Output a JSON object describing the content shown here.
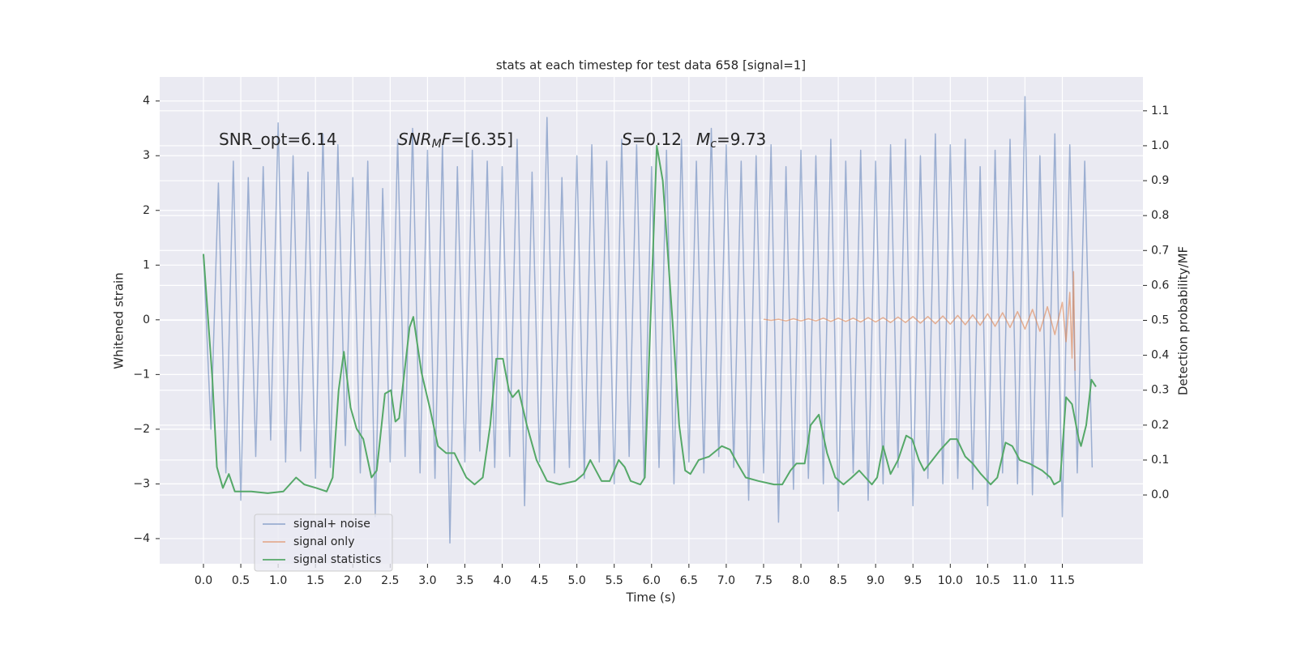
{
  "chart_data": {
    "type": "line",
    "title": "stats at each timestep for test data 658 [signal=1]",
    "xlabel": "Time (s)",
    "ylabel": "Whitened strain",
    "y2label": "Detection probability/MF",
    "xlim": [
      -0.586,
      12.58
    ],
    "ylim": [
      -4.46,
      4.44
    ],
    "y2lim": [
      -0.197,
      1.197
    ],
    "xticks": [
      {
        "value": 0,
        "label": "0.0"
      },
      0.5,
      {
        "value": 1,
        "label": "1.0"
      },
      1.5,
      {
        "value": 2,
        "label": "2.0"
      },
      2.5,
      {
        "value": 3,
        "label": "3.0"
      },
      3.5,
      {
        "value": 4,
        "label": "4.0"
      },
      4.5,
      {
        "value": 5,
        "label": "5.0"
      },
      5.5,
      {
        "value": 6,
        "label": "6.0"
      },
      6.5,
      {
        "value": 7,
        "label": "7.0"
      },
      7.5,
      {
        "value": 8,
        "label": "8.0"
      },
      8.5,
      {
        "value": 9,
        "label": "9.0"
      },
      9.5,
      {
        "value": 10,
        "label": "10.0"
      },
      10.5,
      {
        "value": 11,
        "label": "11.0"
      },
      11.5
    ],
    "yticks": [
      {
        "value": -4,
        "label": "−4"
      },
      {
        "value": -3,
        "label": "−3"
      },
      {
        "value": -2,
        "label": "−2"
      },
      {
        "value": -1,
        "label": "−1"
      },
      0,
      1,
      2,
      3,
      4
    ],
    "y2ticks": [
      {
        "value": 0,
        "label": "0.0"
      },
      0.1,
      0.2,
      0.3,
      0.4,
      0.5,
      0.6,
      0.7,
      0.8,
      0.9,
      {
        "value": 1,
        "label": "1.0"
      },
      1.1
    ],
    "grid": true,
    "legend": "lower left",
    "annotations": [
      [
        {
          "text": "SNR_opt=6.14"
        }
      ],
      [
        {
          "text": "SNR",
          "italic": true
        },
        {
          "text": "M",
          "italic": true,
          "sub": true
        },
        {
          "text": "F",
          "italic": true
        },
        {
          "text": "=[6.35]"
        }
      ],
      [
        {
          "text": "S",
          "italic": true
        },
        {
          "text": "=0.12"
        }
      ],
      [
        {
          "text": "M",
          "italic": true
        },
        {
          "text": "c",
          "italic": true,
          "sub": true
        },
        {
          "text": "=9.73"
        }
      ]
    ],
    "series": [
      {
        "name": "signal+ noise",
        "color": "#4c72b0",
        "opacity": 0.5,
        "x": [
          0,
          0.1,
          0.2,
          0.3,
          0.4,
          0.5,
          0.6,
          0.7,
          0.8,
          0.9,
          1,
          1.1,
          1.2,
          1.3,
          1.4,
          1.5,
          1.6,
          1.7,
          1.8,
          1.9,
          2,
          2.1,
          2.2,
          2.3,
          2.4,
          2.5,
          2.6,
          2.7,
          2.8,
          2.9,
          3,
          3.1,
          3.2,
          3.3,
          3.4,
          3.5,
          3.6,
          3.7,
          3.8,
          3.9,
          4,
          4.1,
          4.2,
          4.3,
          4.4,
          4.5,
          4.6,
          4.7,
          4.8,
          4.9,
          5,
          5.1,
          5.2,
          5.3,
          5.4,
          5.5,
          5.6,
          5.7,
          5.8,
          5.9,
          6,
          6.1,
          6.2,
          6.3,
          6.4,
          6.5,
          6.6,
          6.7,
          6.8,
          6.9,
          7,
          7.1,
          7.2,
          7.3,
          7.4,
          7.5,
          7.6,
          7.7,
          7.8,
          7.9,
          8,
          8.1,
          8.2,
          8.3,
          8.4,
          8.5,
          8.6,
          8.7,
          8.8,
          8.9,
          9,
          9.1,
          9.2,
          9.3,
          9.4,
          9.5,
          9.6,
          9.7,
          9.8,
          9.9,
          10,
          10.1,
          10.2,
          10.3,
          10.4,
          10.5,
          10.6,
          10.7,
          10.8,
          10.9,
          11,
          11.1,
          11.2,
          11.3,
          11.4,
          11.5,
          11.6,
          11.7,
          11.8,
          11.9
        ],
        "values": [
          1.2,
          -2.0,
          2.5,
          -2.8,
          2.9,
          -3.3,
          2.6,
          -2.5,
          2.8,
          -2.2,
          3.6,
          -2.6,
          3.0,
          -2.4,
          2.7,
          -2.9,
          3.4,
          -2.7,
          3.2,
          -2.3,
          2.6,
          -2.8,
          2.9,
          -3.6,
          2.4,
          -2.6,
          3.3,
          -2.5,
          3.5,
          -2.8,
          3.1,
          -2.9,
          3.2,
          -4.08,
          2.8,
          -2.6,
          3.1,
          -2.4,
          2.9,
          -2.7,
          2.8,
          -2.5,
          3.3,
          -3.4,
          2.7,
          -2.6,
          3.7,
          -2.8,
          2.6,
          -2.7,
          3.0,
          -2.9,
          3.2,
          -2.6,
          2.9,
          -3.0,
          3.3,
          -2.5,
          3.2,
          -2.9,
          2.8,
          -2.7,
          3.1,
          -3.0,
          3.3,
          -2.6,
          2.9,
          -2.8,
          3.5,
          -2.5,
          3.2,
          -2.7,
          2.9,
          -3.3,
          3.0,
          -2.8,
          3.2,
          -3.7,
          2.8,
          -3.1,
          3.1,
          -2.9,
          3.0,
          -3.0,
          3.3,
          -3.5,
          2.9,
          -2.8,
          3.1,
          -3.3,
          2.9,
          -3.0,
          3.2,
          -2.7,
          3.3,
          -3.4,
          3.0,
          -2.9,
          3.4,
          -3.0,
          3.2,
          -2.9,
          3.3,
          -3.1,
          2.8,
          -3.4,
          3.1,
          -2.8,
          3.3,
          -3.0,
          4.08,
          -3.2,
          3.0,
          -2.9,
          3.4,
          -3.6,
          3.2,
          -2.8,
          2.9,
          -2.7
        ]
      },
      {
        "name": "signal only",
        "color": "#dd8452",
        "opacity": 0.6,
        "x": [
          7.5,
          7.6,
          7.7,
          7.8,
          7.9,
          8,
          8.1,
          8.2,
          8.3,
          8.4,
          8.5,
          8.6,
          8.7,
          8.8,
          8.9,
          9,
          9.1,
          9.2,
          9.3,
          9.4,
          9.5,
          9.6,
          9.7,
          9.8,
          9.9,
          10,
          10.1,
          10.2,
          10.3,
          10.4,
          10.5,
          10.6,
          10.7,
          10.8,
          10.9,
          11,
          11.1,
          11.2,
          11.3,
          11.4,
          11.5,
          11.55,
          11.6,
          11.63,
          11.65,
          11.67
        ],
        "values": [
          0.01,
          -0.01,
          0.01,
          -0.02,
          0.02,
          -0.02,
          0.02,
          -0.02,
          0.03,
          -0.03,
          0.03,
          -0.03,
          0.03,
          -0.04,
          0.04,
          -0.04,
          0.04,
          -0.05,
          0.05,
          -0.05,
          0.06,
          -0.06,
          0.06,
          -0.07,
          0.07,
          -0.08,
          0.08,
          -0.09,
          0.09,
          -0.1,
          0.11,
          -0.12,
          0.13,
          -0.14,
          0.15,
          -0.17,
          0.19,
          -0.21,
          0.24,
          -0.27,
          0.32,
          -0.4,
          0.5,
          -0.7,
          0.88,
          -0.93
        ]
      },
      {
        "name": "signal statistics",
        "color": "#55a868",
        "axis": "y2",
        "x": [
          0,
          0.12,
          0.18,
          0.26,
          0.34,
          0.42,
          0.64,
          0.86,
          1.07,
          1.24,
          1.35,
          1.51,
          1.65,
          1.73,
          1.81,
          1.88,
          1.97,
          2.05,
          2.14,
          2.25,
          2.32,
          2.43,
          2.51,
          2.57,
          2.62,
          2.76,
          2.81,
          2.92,
          3.03,
          3.14,
          3.25,
          3.36,
          3.52,
          3.63,
          3.74,
          3.84,
          3.92,
          4.01,
          4.09,
          4.14,
          4.22,
          4.33,
          4.46,
          4.6,
          4.77,
          4.98,
          5.09,
          5.18,
          5.33,
          5.44,
          5.56,
          5.64,
          5.72,
          5.85,
          5.91,
          6.07,
          6.15,
          6.28,
          6.37,
          6.45,
          6.52,
          6.63,
          6.77,
          6.94,
          7.05,
          7.15,
          7.26,
          7.43,
          7.64,
          7.75,
          7.86,
          7.94,
          8.05,
          8.13,
          8.24,
          8.35,
          8.46,
          8.57,
          8.68,
          8.78,
          8.95,
          9.02,
          9.1,
          9.2,
          9.3,
          9.41,
          9.49,
          9.58,
          9.65,
          9.76,
          9.87,
          10,
          10.09,
          10.2,
          10.3,
          10.41,
          10.54,
          10.63,
          10.74,
          10.83,
          10.93,
          11.06,
          11.23,
          11.34,
          11.39,
          11.47,
          11.55,
          11.63,
          11.72,
          11.75,
          11.82,
          11.89,
          11.95
        ],
        "values": [
          0.69,
          0.33,
          0.08,
          0.02,
          0.06,
          0.01,
          0.01,
          0.005,
          0.01,
          0.05,
          0.03,
          0.02,
          0.01,
          0.05,
          0.3,
          0.41,
          0.25,
          0.19,
          0.16,
          0.05,
          0.07,
          0.29,
          0.3,
          0.21,
          0.22,
          0.48,
          0.51,
          0.35,
          0.25,
          0.14,
          0.12,
          0.12,
          0.05,
          0.03,
          0.05,
          0.2,
          0.39,
          0.39,
          0.3,
          0.28,
          0.3,
          0.2,
          0.1,
          0.04,
          0.03,
          0.04,
          0.06,
          0.1,
          0.04,
          0.04,
          0.1,
          0.08,
          0.04,
          0.03,
          0.05,
          1.0,
          0.9,
          0.5,
          0.2,
          0.07,
          0.06,
          0.1,
          0.11,
          0.14,
          0.13,
          0.09,
          0.05,
          0.04,
          0.03,
          0.03,
          0.07,
          0.09,
          0.09,
          0.2,
          0.23,
          0.12,
          0.05,
          0.03,
          0.05,
          0.07,
          0.03,
          0.05,
          0.14,
          0.06,
          0.1,
          0.17,
          0.16,
          0.1,
          0.07,
          0.1,
          0.13,
          0.16,
          0.16,
          0.11,
          0.09,
          0.06,
          0.03,
          0.05,
          0.15,
          0.14,
          0.1,
          0.09,
          0.07,
          0.05,
          0.03,
          0.04,
          0.28,
          0.26,
          0.16,
          0.14,
          0.2,
          0.33,
          0.31
        ]
      }
    ]
  }
}
